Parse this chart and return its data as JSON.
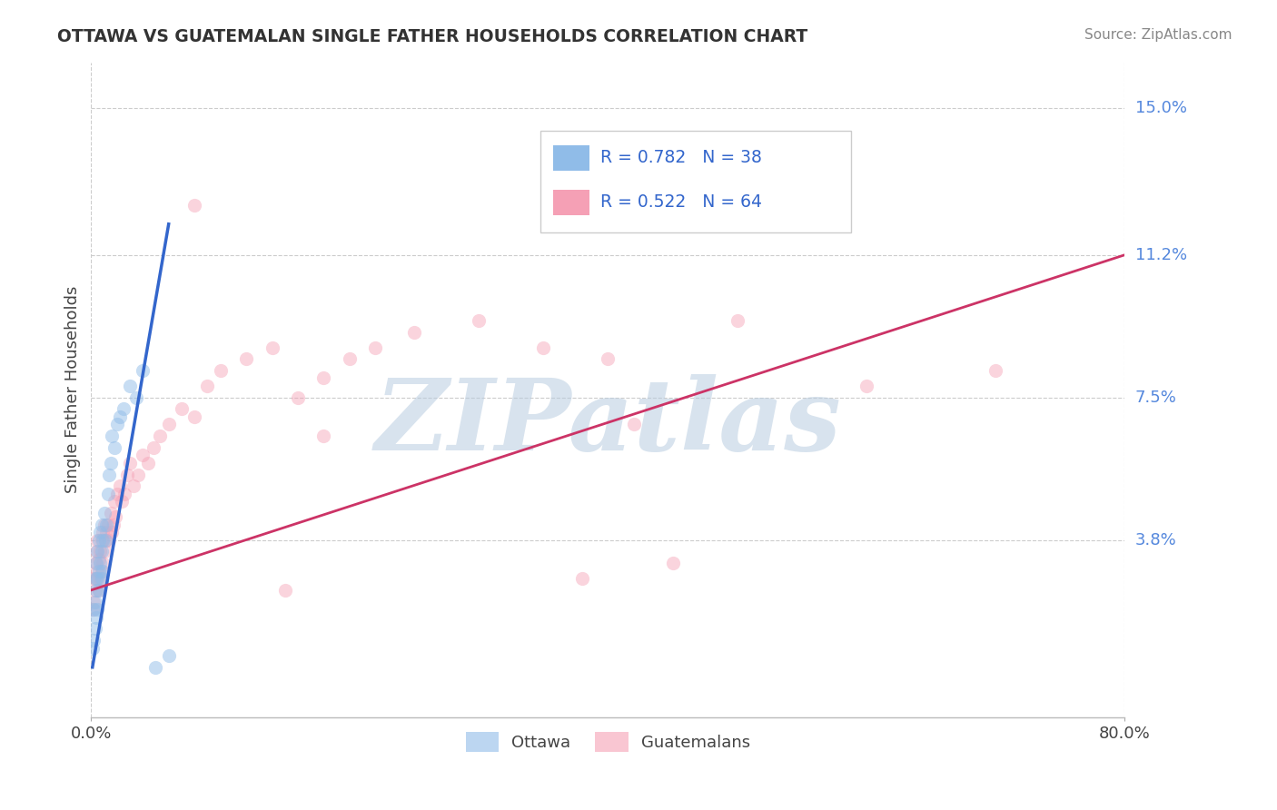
{
  "title": "OTTAWA VS GUATEMALAN SINGLE FATHER HOUSEHOLDS CORRELATION CHART",
  "source": "Source: ZipAtlas.com",
  "ylabel": "Single Father Households",
  "xlim": [
    0.0,
    0.8
  ],
  "ylim": [
    -0.008,
    0.162
  ],
  "xticklabels": [
    "0.0%",
    "80.0%"
  ],
  "ytick_positions": [
    0.038,
    0.075,
    0.112,
    0.15
  ],
  "ytick_labels": [
    "3.8%",
    "7.5%",
    "11.2%",
    "15.0%"
  ],
  "watermark": "ZIPatlas",
  "legend_entry1": "R = 0.782   N = 38",
  "legend_entry2": "R = 0.522   N = 64",
  "ottawa_color": "#90bce8",
  "guatemalan_color": "#f5a0b5",
  "ottawa_scatter_x": [
    0.001,
    0.002,
    0.002,
    0.003,
    0.003,
    0.003,
    0.004,
    0.004,
    0.004,
    0.005,
    0.005,
    0.005,
    0.006,
    0.006,
    0.006,
    0.007,
    0.007,
    0.008,
    0.008,
    0.008,
    0.009,
    0.009,
    0.01,
    0.011,
    0.012,
    0.013,
    0.014,
    0.015,
    0.016,
    0.018,
    0.02,
    0.022,
    0.025,
    0.03,
    0.035,
    0.04,
    0.05,
    0.06
  ],
  "ottawa_scatter_y": [
    0.01,
    0.012,
    0.02,
    0.015,
    0.022,
    0.028,
    0.018,
    0.025,
    0.032,
    0.02,
    0.028,
    0.035,
    0.025,
    0.03,
    0.038,
    0.032,
    0.04,
    0.028,
    0.035,
    0.042,
    0.03,
    0.038,
    0.045,
    0.038,
    0.042,
    0.05,
    0.055,
    0.058,
    0.065,
    0.062,
    0.068,
    0.07,
    0.072,
    0.078,
    0.075,
    0.082,
    0.005,
    0.008
  ],
  "guatemalan_scatter_x": [
    0.001,
    0.002,
    0.002,
    0.003,
    0.003,
    0.004,
    0.004,
    0.005,
    0.005,
    0.006,
    0.006,
    0.007,
    0.007,
    0.008,
    0.008,
    0.009,
    0.009,
    0.01,
    0.01,
    0.011,
    0.012,
    0.013,
    0.014,
    0.015,
    0.016,
    0.017,
    0.018,
    0.019,
    0.02,
    0.022,
    0.024,
    0.026,
    0.028,
    0.03,
    0.033,
    0.036,
    0.04,
    0.044,
    0.048,
    0.053,
    0.06,
    0.07,
    0.08,
    0.09,
    0.1,
    0.12,
    0.14,
    0.16,
    0.18,
    0.2,
    0.22,
    0.25,
    0.3,
    0.35,
    0.4,
    0.5,
    0.6,
    0.7,
    0.08,
    0.18,
    0.38,
    0.45,
    0.42,
    0.15
  ],
  "guatemalan_scatter_y": [
    0.02,
    0.022,
    0.028,
    0.025,
    0.032,
    0.028,
    0.035,
    0.03,
    0.038,
    0.025,
    0.033,
    0.028,
    0.035,
    0.03,
    0.038,
    0.032,
    0.04,
    0.035,
    0.042,
    0.038,
    0.04,
    0.042,
    0.038,
    0.045,
    0.04,
    0.042,
    0.048,
    0.044,
    0.05,
    0.052,
    0.048,
    0.05,
    0.055,
    0.058,
    0.052,
    0.055,
    0.06,
    0.058,
    0.062,
    0.065,
    0.068,
    0.072,
    0.07,
    0.078,
    0.082,
    0.085,
    0.088,
    0.075,
    0.08,
    0.085,
    0.088,
    0.092,
    0.095,
    0.088,
    0.085,
    0.095,
    0.078,
    0.082,
    0.125,
    0.065,
    0.028,
    0.032,
    0.068,
    0.025
  ],
  "ottawa_line_x": [
    0.001,
    0.06
  ],
  "ottawa_line_y": [
    0.005,
    0.12
  ],
  "guatemalan_line_x": [
    0.0,
    0.8
  ],
  "guatemalan_line_y": [
    0.025,
    0.112
  ],
  "background_color": "#ffffff",
  "grid_color": "#cccccc",
  "watermark_color": "#b8cce0",
  "title_color": "#333333",
  "source_color": "#888888",
  "line_blue": "#3366cc",
  "line_pink": "#cc3366"
}
